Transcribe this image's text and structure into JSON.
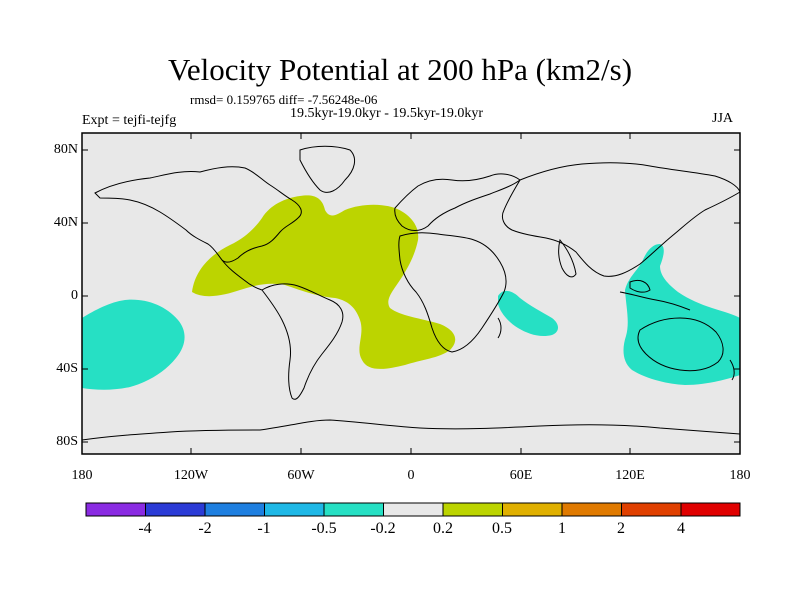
{
  "title": "Velocity Potential at 200 hPa (km2/s)",
  "stats_line": "rmsd= 0.159765 diff= -7.56248e-06",
  "period_line": "19.5kyr-19.0kyr - 19.5kyr-19.0kyr",
  "experiment": "Expt = tejfi-tejfg",
  "season": "JJA",
  "lat_labels": [
    "80N",
    "40N",
    "0",
    "40S",
    "80S"
  ],
  "lon_labels": [
    "180",
    "120W",
    "60W",
    "0",
    "60E",
    "120E",
    "180"
  ],
  "colorbar": {
    "colors": [
      "#8a2be2",
      "#2b3bd6",
      "#1e7fe0",
      "#1fb8e6",
      "#26e0c4",
      "#e8e8e8",
      "#bcd400",
      "#e0b000",
      "#e07a00",
      "#e04000",
      "#e00000"
    ],
    "labels": [
      "-4",
      "-2",
      "-1",
      "-0.5",
      "-0.2",
      "0.2",
      "0.5",
      "1",
      "2",
      "4"
    ]
  },
  "colors": {
    "background": "#e8e8e8",
    "positive_anomaly": "#bcd400",
    "negative_anomaly": "#26e0c4"
  }
}
